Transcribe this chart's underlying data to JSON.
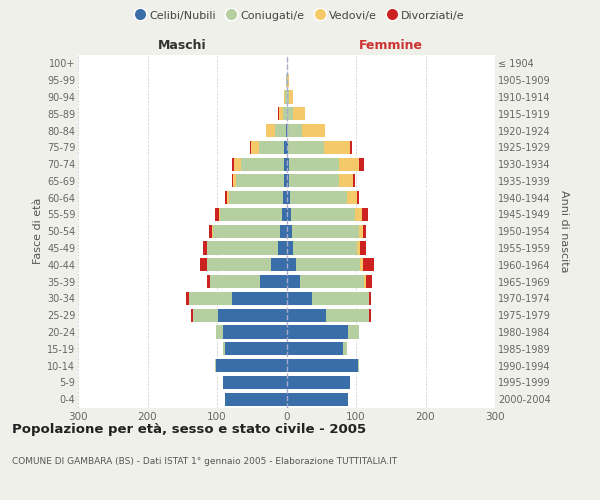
{
  "age_groups": [
    "0-4",
    "5-9",
    "10-14",
    "15-19",
    "20-24",
    "25-29",
    "30-34",
    "35-39",
    "40-44",
    "45-49",
    "50-54",
    "55-59",
    "60-64",
    "65-69",
    "70-74",
    "75-79",
    "80-84",
    "85-89",
    "90-94",
    "95-99",
    "100+"
  ],
  "birth_years": [
    "2000-2004",
    "1995-1999",
    "1990-1994",
    "1985-1989",
    "1980-1984",
    "1975-1979",
    "1970-1974",
    "1965-1969",
    "1960-1964",
    "1955-1959",
    "1950-1954",
    "1945-1949",
    "1940-1944",
    "1935-1939",
    "1930-1934",
    "1925-1929",
    "1920-1924",
    "1915-1919",
    "1910-1914",
    "1905-1909",
    "≤ 1904"
  ],
  "male_celibi": [
    88,
    92,
    102,
    88,
    92,
    98,
    78,
    38,
    22,
    12,
    9,
    7,
    5,
    4,
    4,
    3,
    1,
    0,
    0,
    0,
    0
  ],
  "male_coniugati": [
    0,
    0,
    1,
    3,
    10,
    36,
    62,
    72,
    92,
    102,
    97,
    88,
    78,
    68,
    62,
    36,
    16,
    5,
    2,
    1,
    0
  ],
  "male_vedovi": [
    0,
    0,
    0,
    0,
    0,
    0,
    0,
    0,
    1,
    1,
    1,
    2,
    3,
    5,
    9,
    12,
    12,
    6,
    2,
    0,
    0
  ],
  "male_divorziati": [
    0,
    0,
    0,
    0,
    0,
    4,
    5,
    5,
    9,
    5,
    5,
    6,
    2,
    2,
    3,
    1,
    1,
    1,
    0,
    0,
    0
  ],
  "fem_nubili": [
    88,
    92,
    103,
    82,
    88,
    57,
    36,
    20,
    14,
    9,
    8,
    6,
    5,
    4,
    3,
    2,
    1,
    0,
    0,
    0,
    0
  ],
  "fem_coniugate": [
    0,
    0,
    1,
    5,
    16,
    62,
    82,
    92,
    92,
    92,
    97,
    92,
    82,
    72,
    72,
    52,
    22,
    9,
    3,
    1,
    0
  ],
  "fem_vedove": [
    0,
    0,
    0,
    0,
    0,
    0,
    1,
    2,
    4,
    5,
    5,
    10,
    15,
    20,
    30,
    38,
    32,
    17,
    7,
    3,
    1
  ],
  "fem_divorziate": [
    0,
    0,
    0,
    0,
    0,
    2,
    3,
    9,
    16,
    9,
    5,
    9,
    3,
    3,
    6,
    2,
    1,
    1,
    0,
    0,
    0
  ],
  "colors": {
    "celibi": "#3a6ea8",
    "coniugati": "#b5cfa0",
    "vedovi": "#f5c96a",
    "divorziati": "#cc2222"
  },
  "xlim": 300,
  "title": "Popolazione per età, sesso e stato civile - 2005",
  "subtitle": "COMUNE DI GAMBARA (BS) - Dati ISTAT 1° gennaio 2005 - Elaborazione TUTTITALIA.IT",
  "ylabel_left": "Fasce di età",
  "ylabel_right": "Anni di nascita",
  "label_maschi": "Maschi",
  "label_femmine": "Femmine",
  "legend_labels": [
    "Celibi/Nubili",
    "Coniugati/e",
    "Vedovi/e",
    "Divorziati/e"
  ],
  "bg_color": "#f0f0eb",
  "plot_bg": "#ffffff",
  "xticks": [
    -300,
    -200,
    -100,
    0,
    100,
    200,
    300
  ]
}
